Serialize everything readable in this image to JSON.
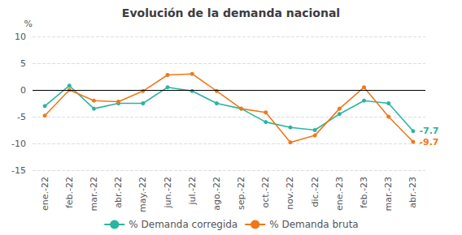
{
  "chart_data": {
    "type": "line",
    "title": "Evolución de la demanda nacional",
    "ylabel": "%",
    "categories": [
      "ene.-22",
      "feb.-22",
      "mar.-22",
      "abr.-22",
      "may.-22",
      "jun.-22",
      "jul.-22",
      "ago.-22",
      "sep.-22",
      "oct.-22",
      "nov.-22",
      "dic.-22",
      "ene.-23",
      "feb.-23",
      "mar.-23",
      "abr.-23"
    ],
    "series": [
      {
        "name": "% Demanda corregida",
        "color": "#2ab5a0",
        "marker": "circle",
        "values": [
          -3.0,
          0.8,
          -3.5,
          -2.5,
          -2.5,
          0.5,
          -0.2,
          -2.5,
          -3.5,
          -6.0,
          -7.0,
          -7.5,
          -4.5,
          -2.0,
          -2.5,
          -7.7
        ]
      },
      {
        "name": "% Demanda bruta",
        "color": "#f07818",
        "marker": "circle",
        "values": [
          -4.8,
          0.0,
          -2.0,
          -2.2,
          -0.2,
          2.8,
          3.0,
          -0.2,
          -3.5,
          -4.2,
          -9.8,
          -8.5,
          -3.5,
          0.5,
          -5.0,
          -9.7
        ]
      }
    ],
    "annotations": [
      {
        "text": "-7.7",
        "series": "% Demanda corregida",
        "x": "abr.-23",
        "y": -7.7
      },
      {
        "text": "-9.7",
        "series": "% Demanda bruta",
        "x": "abr.-23",
        "y": -9.7
      }
    ],
    "ylim": [
      -15.0,
      10.0
    ],
    "yticks": [
      -15,
      -10,
      -5,
      0,
      5,
      10
    ],
    "grid": true,
    "legend": "bottom"
  }
}
